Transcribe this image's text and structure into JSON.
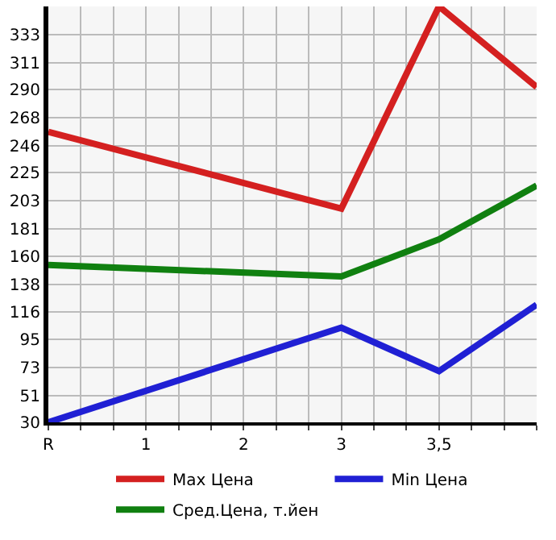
{
  "chart_data": {
    "type": "line",
    "categories": [
      "R",
      "1",
      "2",
      "3",
      "3,5",
      null
    ],
    "series": [
      {
        "name": "Max Цена",
        "color": "#d42020",
        "values": [
          257,
          null,
          null,
          197,
          355,
          292
        ]
      },
      {
        "name": "Min Цена",
        "color": "#2020d4",
        "values": [
          30,
          null,
          null,
          104,
          70,
          122
        ]
      },
      {
        "name": "Сред.Цена, т.йен",
        "color": "#108010",
        "values": [
          153,
          null,
          null,
          144,
          173,
          215
        ]
      }
    ],
    "ylim": [
      30,
      355
    ],
    "yticks": [
      30,
      51,
      73,
      95,
      116,
      138,
      160,
      181,
      203,
      225,
      246,
      268,
      290,
      311,
      333
    ],
    "grid": true,
    "legend": "bottom",
    "marker": "none",
    "line_style": "solid"
  }
}
